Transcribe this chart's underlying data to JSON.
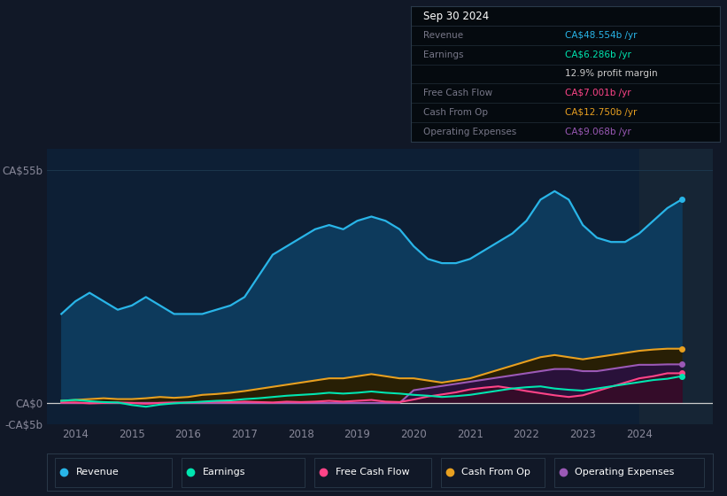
{
  "bg_color": "#111827",
  "plot_bg_color": "#0d1f35",
  "title_box_bg": "#050a0f",
  "title_box_date": "Sep 30 2024",
  "ylim": [
    -5,
    60
  ],
  "yticks": [
    -5,
    0,
    55
  ],
  "ytick_labels": [
    "-CA$5b",
    "CA$0",
    "CA$55b"
  ],
  "xlim_start": 2013.5,
  "xlim_end": 2025.3,
  "xtick_years": [
    2014,
    2015,
    2016,
    2017,
    2018,
    2019,
    2020,
    2021,
    2022,
    2023,
    2024
  ],
  "revenue_color": "#29b5e8",
  "revenue_fill": "#0d3a5c",
  "earnings_color": "#00e5b0",
  "fcf_color": "#ff4488",
  "cashfromop_color": "#e8a020",
  "opex_color": "#9b59b6",
  "revenue": {
    "x": [
      2013.75,
      2014.0,
      2014.25,
      2014.5,
      2014.75,
      2015.0,
      2015.25,
      2015.5,
      2015.75,
      2016.0,
      2016.25,
      2016.5,
      2016.75,
      2017.0,
      2017.25,
      2017.5,
      2017.75,
      2018.0,
      2018.25,
      2018.5,
      2018.75,
      2019.0,
      2019.25,
      2019.5,
      2019.75,
      2020.0,
      2020.25,
      2020.5,
      2020.75,
      2021.0,
      2021.25,
      2021.5,
      2021.75,
      2022.0,
      2022.25,
      2022.5,
      2022.75,
      2023.0,
      2023.25,
      2023.5,
      2023.75,
      2024.0,
      2024.25,
      2024.5,
      2024.75
    ],
    "y": [
      21,
      24,
      26,
      24,
      22,
      23,
      25,
      23,
      21,
      21,
      21,
      22,
      23,
      25,
      30,
      35,
      37,
      39,
      41,
      42,
      41,
      43,
      44,
      43,
      41,
      37,
      34,
      33,
      33,
      34,
      36,
      38,
      40,
      43,
      48,
      50,
      48,
      42,
      39,
      38,
      38,
      40,
      43,
      46,
      48
    ]
  },
  "earnings": {
    "x": [
      2013.75,
      2014.0,
      2014.25,
      2014.5,
      2014.75,
      2015.0,
      2015.25,
      2015.5,
      2015.75,
      2016.0,
      2016.25,
      2016.5,
      2016.75,
      2017.0,
      2017.25,
      2017.5,
      2017.75,
      2018.0,
      2018.25,
      2018.5,
      2018.75,
      2019.0,
      2019.25,
      2019.5,
      2019.75,
      2020.0,
      2020.25,
      2020.5,
      2020.75,
      2021.0,
      2021.25,
      2021.5,
      2021.75,
      2022.0,
      2022.25,
      2022.5,
      2022.75,
      2023.0,
      2023.25,
      2023.5,
      2023.75,
      2024.0,
      2024.25,
      2024.5,
      2024.75
    ],
    "y": [
      0.5,
      0.7,
      0.4,
      0.2,
      0.1,
      -0.5,
      -0.9,
      -0.4,
      -0.1,
      0.1,
      0.3,
      0.5,
      0.6,
      0.9,
      1.1,
      1.4,
      1.7,
      1.9,
      2.1,
      2.4,
      2.2,
      2.4,
      2.7,
      2.4,
      2.2,
      1.9,
      1.7,
      1.4,
      1.6,
      1.9,
      2.4,
      2.9,
      3.4,
      3.7,
      3.9,
      3.4,
      3.1,
      2.9,
      3.4,
      3.9,
      4.4,
      4.9,
      5.4,
      5.7,
      6.3
    ]
  },
  "fcf": {
    "x": [
      2013.75,
      2014.0,
      2014.25,
      2014.5,
      2014.75,
      2015.0,
      2015.25,
      2015.5,
      2015.75,
      2016.0,
      2016.25,
      2016.5,
      2016.75,
      2017.0,
      2017.25,
      2017.5,
      2017.75,
      2018.0,
      2018.25,
      2018.5,
      2018.75,
      2019.0,
      2019.25,
      2019.5,
      2019.75,
      2020.0,
      2020.25,
      2020.5,
      2020.75,
      2021.0,
      2021.25,
      2021.5,
      2021.75,
      2022.0,
      2022.25,
      2022.5,
      2022.75,
      2023.0,
      2023.25,
      2023.5,
      2023.75,
      2024.0,
      2024.25,
      2024.5,
      2024.75
    ],
    "y": [
      0.1,
      0.1,
      -0.1,
      0.0,
      0.1,
      0.0,
      -0.2,
      0.0,
      0.1,
      0.1,
      0.2,
      0.3,
      0.2,
      0.3,
      0.2,
      0.1,
      0.3,
      0.2,
      0.3,
      0.5,
      0.3,
      0.5,
      0.7,
      0.3,
      0.2,
      0.8,
      1.5,
      2.0,
      2.5,
      3.2,
      3.6,
      3.9,
      3.4,
      2.8,
      2.3,
      1.8,
      1.4,
      1.8,
      2.8,
      3.8,
      4.8,
      5.8,
      6.3,
      7.0,
      7.0
    ]
  },
  "cashfromop": {
    "x": [
      2013.75,
      2014.0,
      2014.25,
      2014.5,
      2014.75,
      2015.0,
      2015.25,
      2015.5,
      2015.75,
      2016.0,
      2016.25,
      2016.5,
      2016.75,
      2017.0,
      2017.25,
      2017.5,
      2017.75,
      2018.0,
      2018.25,
      2018.5,
      2018.75,
      2019.0,
      2019.25,
      2019.5,
      2019.75,
      2020.0,
      2020.25,
      2020.5,
      2020.75,
      2021.0,
      2021.25,
      2021.5,
      2021.75,
      2022.0,
      2022.25,
      2022.5,
      2022.75,
      2023.0,
      2023.25,
      2023.5,
      2023.75,
      2024.0,
      2024.25,
      2024.5,
      2024.75
    ],
    "y": [
      0.5,
      0.7,
      0.9,
      1.1,
      0.9,
      0.9,
      1.1,
      1.4,
      1.2,
      1.4,
      1.9,
      2.1,
      2.4,
      2.8,
      3.3,
      3.8,
      4.3,
      4.8,
      5.3,
      5.8,
      5.8,
      6.3,
      6.8,
      6.3,
      5.8,
      5.8,
      5.3,
      4.8,
      5.3,
      5.8,
      6.8,
      7.8,
      8.8,
      9.8,
      10.8,
      11.3,
      10.8,
      10.3,
      10.8,
      11.3,
      11.8,
      12.3,
      12.6,
      12.8,
      12.8
    ]
  },
  "opex": {
    "x": [
      2013.75,
      2014.0,
      2014.25,
      2014.5,
      2014.75,
      2015.0,
      2015.25,
      2015.5,
      2015.75,
      2016.0,
      2016.25,
      2016.5,
      2016.75,
      2017.0,
      2017.25,
      2017.5,
      2017.75,
      2018.0,
      2018.25,
      2018.5,
      2018.75,
      2019.0,
      2019.25,
      2019.5,
      2019.75,
      2020.0,
      2020.25,
      2020.5,
      2020.75,
      2021.0,
      2021.25,
      2021.5,
      2021.75,
      2022.0,
      2022.25,
      2022.5,
      2022.75,
      2023.0,
      2023.25,
      2023.5,
      2023.75,
      2024.0,
      2024.25,
      2024.5,
      2024.75
    ],
    "y": [
      0.0,
      0.0,
      0.0,
      0.0,
      0.0,
      0.0,
      0.0,
      0.0,
      0.0,
      0.0,
      0.0,
      0.0,
      0.0,
      0.0,
      0.0,
      0.0,
      0.0,
      0.0,
      0.0,
      0.0,
      0.0,
      0.0,
      0.0,
      0.0,
      0.0,
      3.0,
      3.5,
      4.0,
      4.5,
      5.0,
      5.5,
      6.0,
      6.5,
      7.0,
      7.5,
      8.0,
      8.0,
      7.5,
      7.5,
      8.0,
      8.5,
      9.0,
      9.0,
      9.1,
      9.1
    ]
  },
  "legend": [
    {
      "label": "Revenue",
      "color": "#29b5e8"
    },
    {
      "label": "Earnings",
      "color": "#00e5b0"
    },
    {
      "label": "Free Cash Flow",
      "color": "#ff4488"
    },
    {
      "label": "Cash From Op",
      "color": "#e8a020"
    },
    {
      "label": "Operating Expenses",
      "color": "#9b59b6"
    }
  ],
  "gridline_color": "#1e3a50",
  "zero_line_color": "#cccccc",
  "label_color": "#888899",
  "highlight_band_color": "#162535"
}
